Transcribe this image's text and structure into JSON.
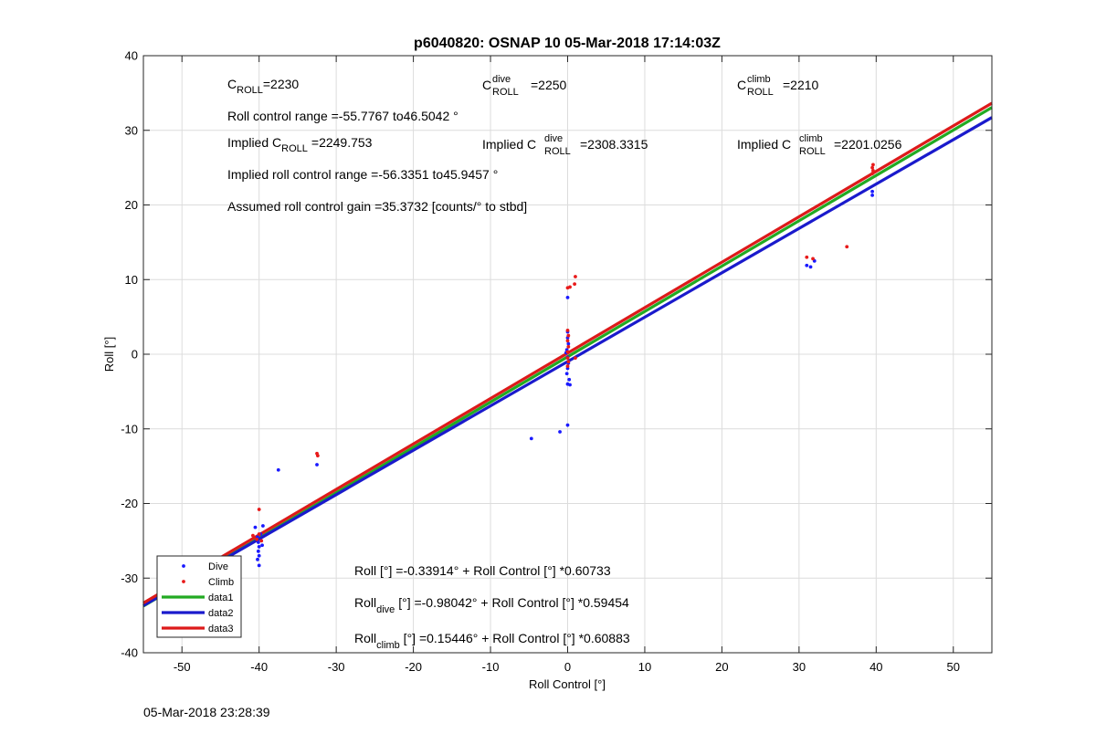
{
  "footer_timestamp": "05-Mar-2018 23:28:39",
  "chart_data": {
    "type": "scatter",
    "title": "p6040820: OSNAP 10 05-Mar-2018 17:14:03Z",
    "xlabel": "Roll Control [°]",
    "ylabel": "Roll [°]",
    "xlim": [
      -55,
      55
    ],
    "ylim": [
      -40,
      40
    ],
    "xticks": [
      -50,
      -40,
      -30,
      -20,
      -10,
      0,
      10,
      20,
      30,
      40,
      50
    ],
    "yticks": [
      -40,
      -30,
      -20,
      -10,
      0,
      10,
      20,
      30,
      40
    ],
    "grid": true,
    "legend": {
      "position": "bottom-left",
      "entries": [
        "Dive",
        "Climb",
        "data1",
        "data2",
        "data3"
      ]
    },
    "colors": {
      "dive": "#1a1aff",
      "climb": "#e81a1a",
      "data1": "#22aa22",
      "data2": "#1a1acc",
      "data3": "#dd1a1a"
    },
    "series": [
      {
        "name": "Dive",
        "type": "scatter",
        "points": [
          [
            -50,
            -28.4
          ],
          [
            -40.5,
            -23.2
          ],
          [
            -40.2,
            -24.5
          ],
          [
            -40.1,
            -25.2
          ],
          [
            -40.0,
            -25.8
          ],
          [
            -40.1,
            -26.4
          ],
          [
            -40.0,
            -27.0
          ],
          [
            -40.2,
            -27.5
          ],
          [
            -40.0,
            -28.3
          ],
          [
            -39.5,
            -23.0
          ],
          [
            -39.8,
            -24.1
          ],
          [
            -39.6,
            -25.6
          ],
          [
            -37.5,
            -15.5
          ],
          [
            -32.5,
            -14.8
          ],
          [
            -4.7,
            -11.3
          ],
          [
            -1.0,
            -10.4
          ],
          [
            0.0,
            -9.5
          ],
          [
            0.0,
            7.6
          ],
          [
            0.0,
            3.0
          ],
          [
            0.0,
            2.2
          ],
          [
            0.1,
            1.4
          ],
          [
            -0.1,
            0.6
          ],
          [
            0.0,
            -0.4
          ],
          [
            0.1,
            -1.2
          ],
          [
            0.0,
            -1.9
          ],
          [
            -0.1,
            -2.6
          ],
          [
            0.2,
            -3.4
          ],
          [
            0.0,
            -4.0
          ],
          [
            0.3,
            -4.1
          ],
          [
            -0.2,
            0.2
          ],
          [
            31.0,
            11.9
          ],
          [
            31.5,
            11.7
          ],
          [
            32.0,
            12.5
          ],
          [
            39.5,
            21.3
          ],
          [
            39.5,
            21.8
          ]
        ]
      },
      {
        "name": "Climb",
        "type": "scatter",
        "points": [
          [
            -40.8,
            -24.3
          ],
          [
            -40.3,
            -24.8
          ],
          [
            -40.0,
            -24.1
          ],
          [
            -39.7,
            -25.0
          ],
          [
            -40.0,
            -20.8
          ],
          [
            -32.5,
            -13.3
          ],
          [
            -32.4,
            -13.6
          ],
          [
            0.0,
            8.9
          ],
          [
            0.3,
            9.0
          ],
          [
            1.0,
            10.4
          ],
          [
            0.9,
            9.4
          ],
          [
            0.0,
            3.2
          ],
          [
            0.1,
            2.5
          ],
          [
            0.0,
            1.8
          ],
          [
            0.1,
            1.0
          ],
          [
            0.0,
            0.3
          ],
          [
            0.0,
            -0.5
          ],
          [
            0.1,
            -1.0
          ],
          [
            0.0,
            -1.6
          ],
          [
            1.0,
            -0.5
          ],
          [
            31.0,
            13.0
          ],
          [
            31.8,
            12.8
          ],
          [
            36.2,
            14.4
          ],
          [
            39.5,
            24.2
          ],
          [
            39.6,
            24.6
          ],
          [
            39.5,
            25.0
          ],
          [
            39.6,
            25.4
          ]
        ]
      },
      {
        "name": "data1",
        "type": "line",
        "intercept": -0.33914,
        "slope": 0.60733
      },
      {
        "name": "data2",
        "type": "line",
        "intercept": -0.98042,
        "slope": 0.59454
      },
      {
        "name": "data3",
        "type": "line",
        "intercept": 0.15446,
        "slope": 0.60883
      }
    ],
    "annotations": {
      "c_roll": {
        "base": "C",
        "sub": "ROLL",
        "value": "=2230"
      },
      "c_roll_dive": {
        "base": "C",
        "sup": "dive",
        "sub": "ROLL",
        "value": "=2250"
      },
      "c_roll_climb": {
        "base": "C",
        "sup": "climb",
        "sub": "ROLL",
        "value": "=2210"
      },
      "roll_control_range": "Roll control range =-55.7767 to46.5042 °",
      "implied_c_roll": {
        "prefix": "Implied C",
        "sub": "ROLL",
        "value": "=2249.753"
      },
      "implied_c_roll_dive": {
        "prefix": "Implied C",
        "sup": "dive",
        "sub": "ROLL",
        "value": "=2308.3315"
      },
      "implied_c_roll_climb": {
        "prefix": "Implied C",
        "sup": "climb",
        "sub": "ROLL",
        "value": "=2201.0256"
      },
      "implied_roll_control_range": "Implied roll control range =-56.3351 to45.9457 °",
      "assumed_gain": "Assumed roll control gain =35.3732 [counts/° to stbd]",
      "fit_all": "Roll [°] =-0.33914° + Roll Control [°] *0.60733",
      "fit_dive": {
        "base": "Roll",
        "sub": "dive",
        "rest": " [°] =-0.98042° + Roll Control [°] *0.59454"
      },
      "fit_climb": {
        "base": "Roll",
        "sub": "climb",
        "rest": " [°] =0.15446° + Roll Control [°] *0.60883"
      }
    }
  }
}
